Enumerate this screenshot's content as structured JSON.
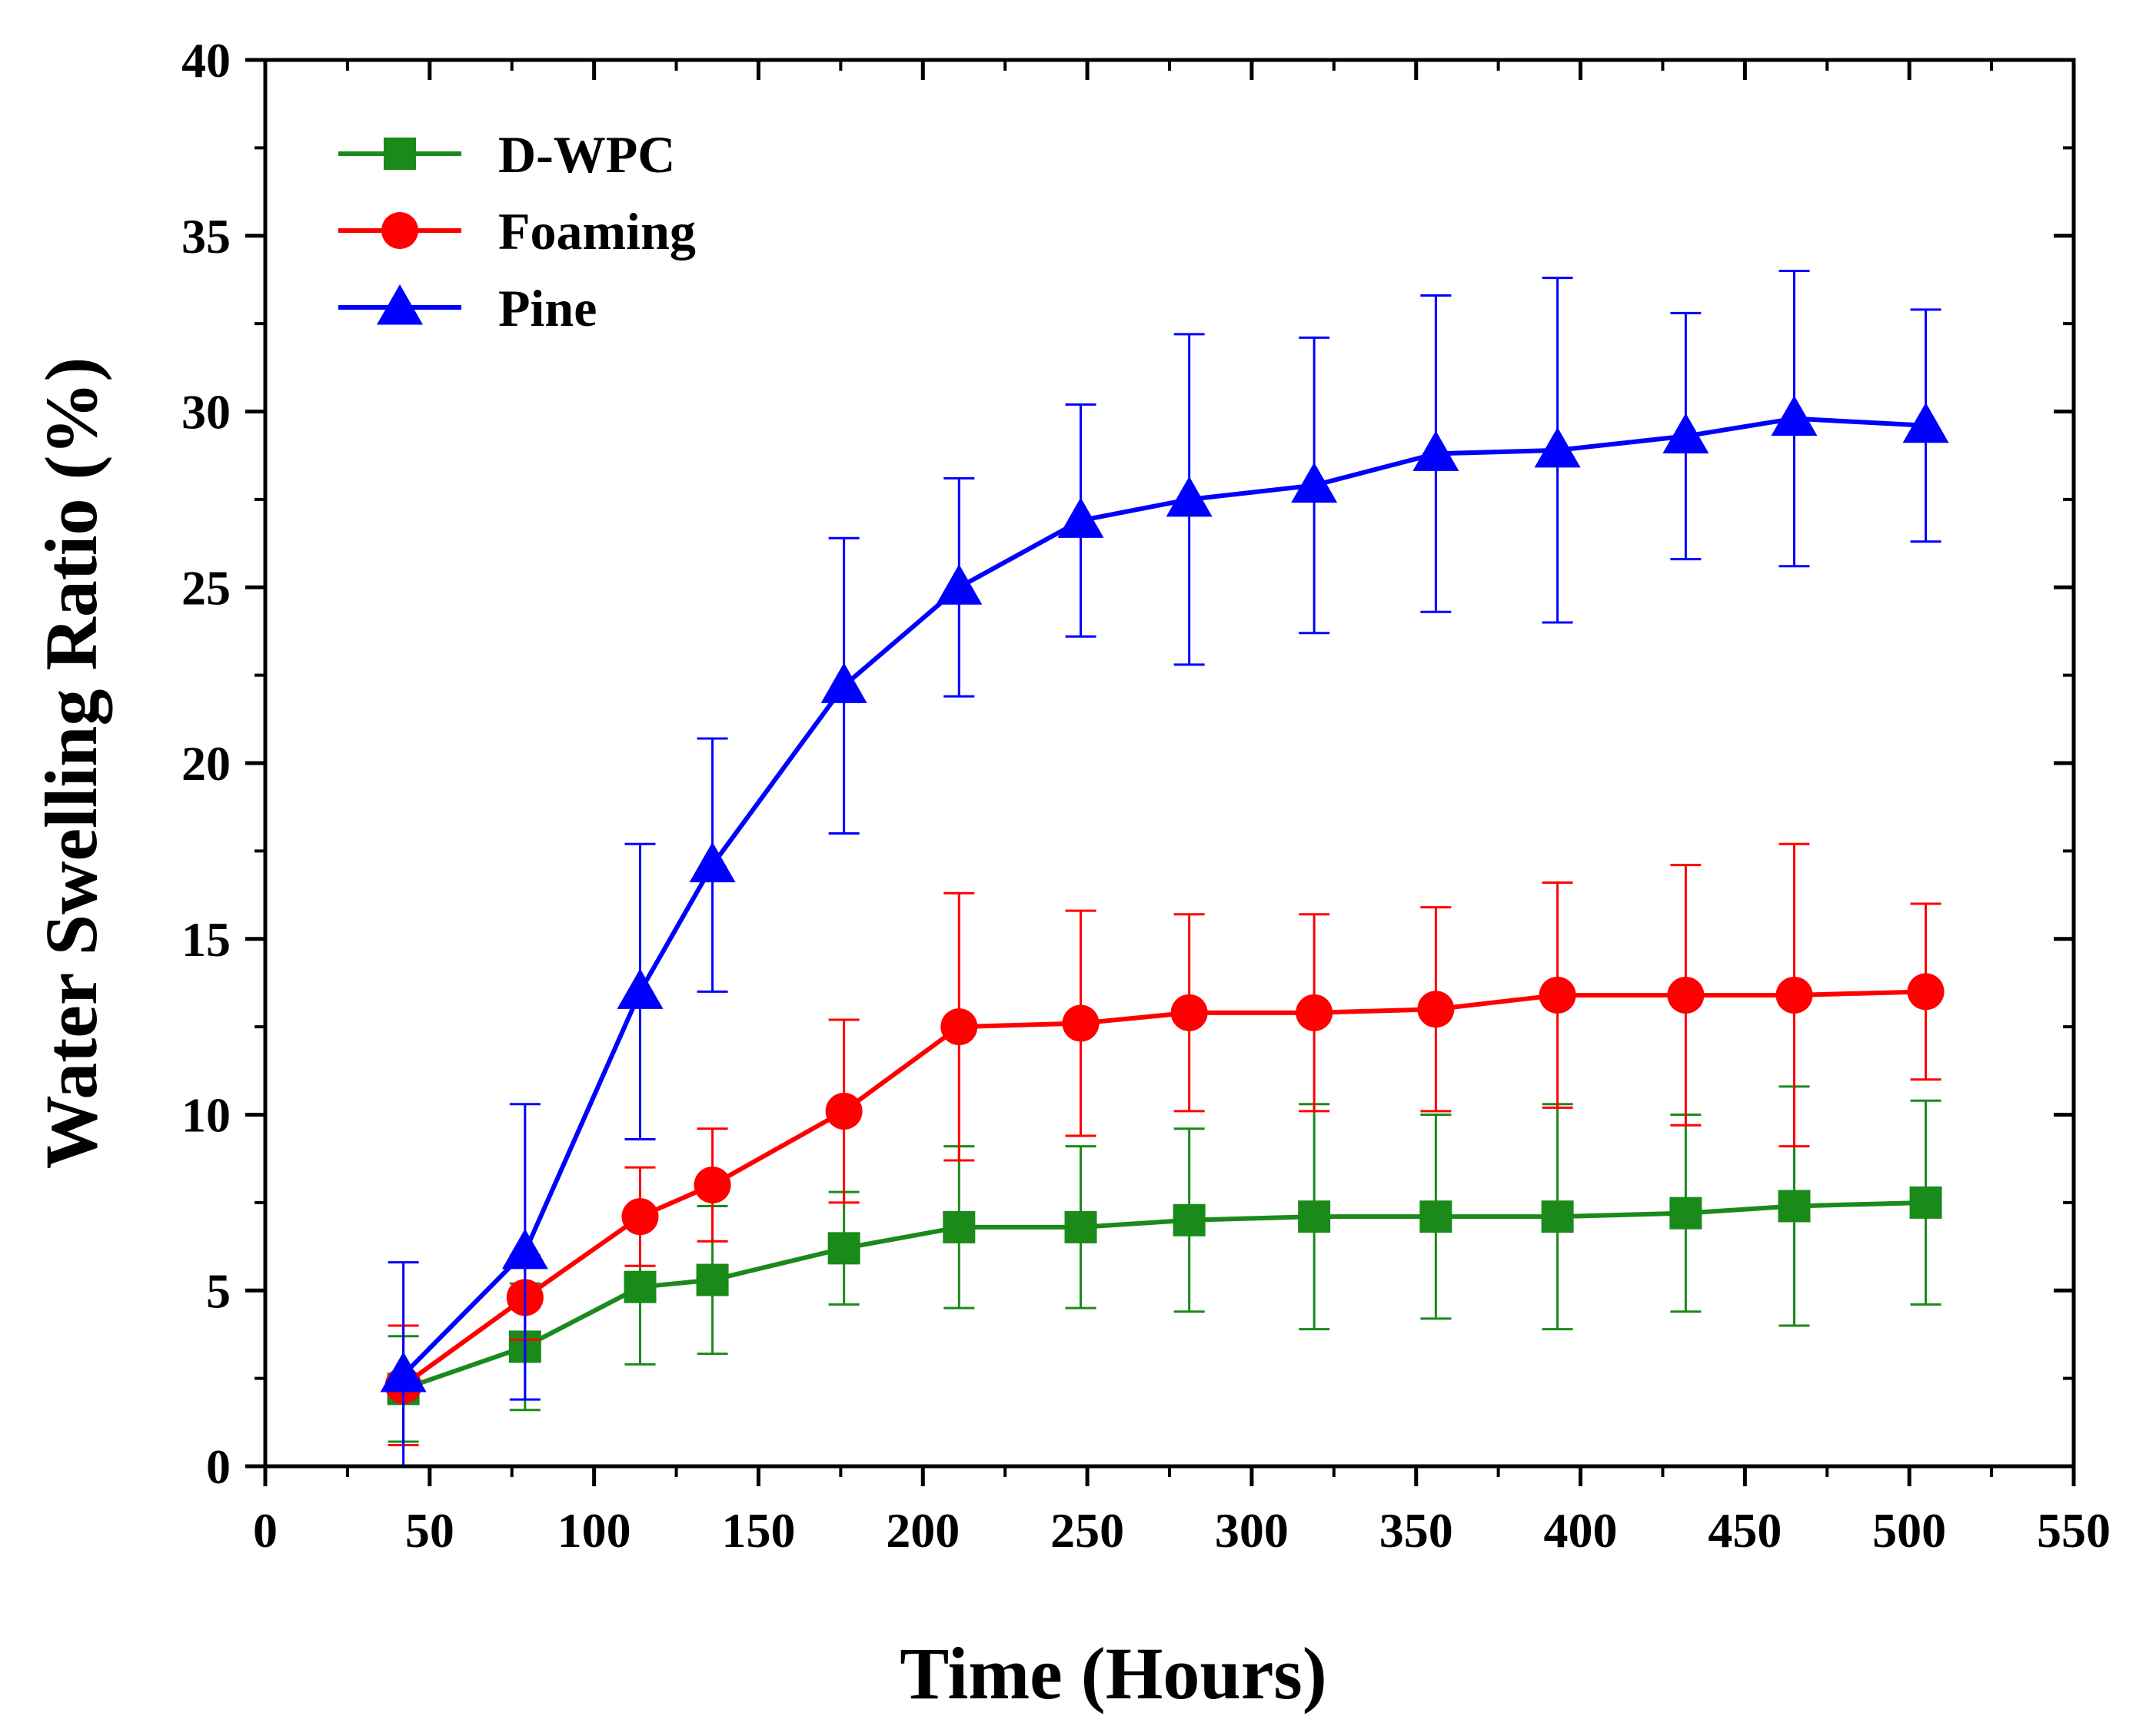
{
  "chart_data": {
    "type": "line",
    "title": "",
    "xlabel": "Time (Hours)",
    "ylabel": "Water Swelling Ratio (%)",
    "xlim": [
      0,
      550
    ],
    "ylim": [
      0,
      40
    ],
    "xticks": [
      0,
      50,
      100,
      150,
      200,
      250,
      300,
      350,
      400,
      450,
      500,
      550
    ],
    "yticks": [
      0,
      5,
      10,
      15,
      20,
      25,
      30,
      35,
      40
    ],
    "grid": false,
    "legend_position": "top-left",
    "x": [
      42,
      79,
      114,
      136,
      176,
      211,
      248,
      281,
      319,
      356,
      393,
      432,
      465,
      505
    ],
    "series": [
      {
        "name": "D-WPC",
        "color": "#1a8a1a",
        "marker": "square",
        "values": [
          2.2,
          3.4,
          5.1,
          5.3,
          6.2,
          6.8,
          6.8,
          7.0,
          7.1,
          7.1,
          7.1,
          7.2,
          7.4,
          7.5
        ],
        "errors": [
          1.5,
          1.8,
          2.2,
          2.1,
          1.6,
          2.3,
          2.3,
          2.6,
          3.2,
          2.9,
          3.2,
          2.8,
          3.4,
          2.9
        ]
      },
      {
        "name": "Foaming",
        "color": "#ff0000",
        "marker": "circle",
        "values": [
          2.3,
          4.8,
          7.1,
          8.0,
          10.1,
          12.5,
          12.6,
          12.9,
          12.9,
          13.0,
          13.4,
          13.4,
          13.4,
          13.5
        ],
        "errors": [
          1.7,
          1.2,
          1.4,
          1.6,
          2.6,
          3.8,
          3.2,
          2.8,
          2.8,
          2.9,
          3.2,
          3.7,
          4.3,
          2.5
        ]
      },
      {
        "name": "Pine",
        "color": "#0000ff",
        "marker": "triangle",
        "values": [
          2.6,
          6.1,
          13.5,
          17.1,
          22.2,
          25.0,
          26.9,
          27.5,
          27.9,
          28.8,
          28.9,
          29.3,
          29.8,
          29.6
        ],
        "errors": [
          3.2,
          4.2,
          4.2,
          3.6,
          4.2,
          3.1,
          3.3,
          4.7,
          4.2,
          4.5,
          4.9,
          3.5,
          4.2,
          3.3
        ]
      }
    ]
  }
}
